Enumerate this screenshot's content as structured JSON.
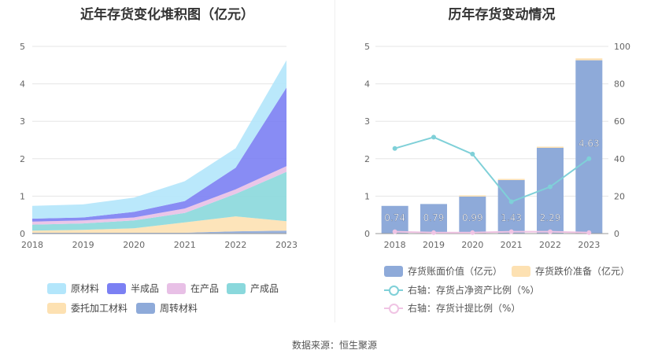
{
  "source": "数据来源：恒生聚源",
  "chart_data": [
    {
      "type": "area",
      "stacked": true,
      "title": "近年存货变化堆积图（亿元）",
      "categories": [
        "2018",
        "2019",
        "2020",
        "2021",
        "2022",
        "2023"
      ],
      "ylim": [
        0,
        5
      ],
      "yticks": [
        0,
        1,
        2,
        3,
        4,
        5
      ],
      "series": [
        {
          "name": "周转材料",
          "color": "#8eaad9",
          "values": [
            0.02,
            0.02,
            0.02,
            0.02,
            0.06,
            0.08
          ]
        },
        {
          "name": "委托加工材料",
          "color": "#fde1b2",
          "values": [
            0.06,
            0.08,
            0.12,
            0.28,
            0.4,
            0.25
          ]
        },
        {
          "name": "产成品",
          "color": "#8ad8dc",
          "values": [
            0.16,
            0.17,
            0.21,
            0.25,
            0.6,
            1.32
          ]
        },
        {
          "name": "在产品",
          "color": "#e8c0e6",
          "values": [
            0.08,
            0.08,
            0.08,
            0.12,
            0.12,
            0.15
          ]
        },
        {
          "name": "半成品",
          "color": "#7b80f3",
          "values": [
            0.08,
            0.08,
            0.15,
            0.2,
            0.58,
            2.1
          ]
        },
        {
          "name": "原材料",
          "color": "#b3e6fb",
          "values": [
            0.34,
            0.35,
            0.38,
            0.53,
            0.52,
            0.73
          ]
        }
      ],
      "legend": [
        "原材料",
        "半成品",
        "在产品",
        "产成品",
        "委托加工材料",
        "周转材料"
      ]
    },
    {
      "type": "bar+line",
      "title": "历年存货变动情况",
      "categories": [
        "2018",
        "2019",
        "2020",
        "2021",
        "2022",
        "2023"
      ],
      "ylim_left": [
        0,
        5
      ],
      "yticks_left": [
        0,
        1,
        2,
        3,
        4,
        5
      ],
      "ylim_right": [
        0,
        100
      ],
      "yticks_right": [
        0,
        20,
        40,
        60,
        80,
        100
      ],
      "bars": [
        {
          "name": "存货账面价值（亿元）",
          "color": "#8eaad9",
          "values": [
            0.74,
            0.79,
            0.99,
            1.43,
            2.29,
            4.63
          ],
          "labels": [
            "0.74",
            "0.79",
            "0.99",
            "1.43",
            "2.29",
            "4.63"
          ]
        },
        {
          "name": "存货跌价准备（亿元）",
          "color": "#fde1b2",
          "values": [
            0.0,
            0.0,
            0.01,
            0.02,
            0.03,
            0.05
          ]
        }
      ],
      "lines": [
        {
          "name": "右轴：存货占净资产比例（%）",
          "color": "#7fd0d8",
          "values": [
            45.5,
            51.5,
            42.5,
            17.0,
            25.0,
            40.0
          ]
        },
        {
          "name": "右轴：存货计提比例（%）",
          "color": "#f0c4e4",
          "values": [
            1.0,
            0.5,
            0.5,
            1.0,
            1.0,
            0.5
          ]
        }
      ]
    }
  ]
}
